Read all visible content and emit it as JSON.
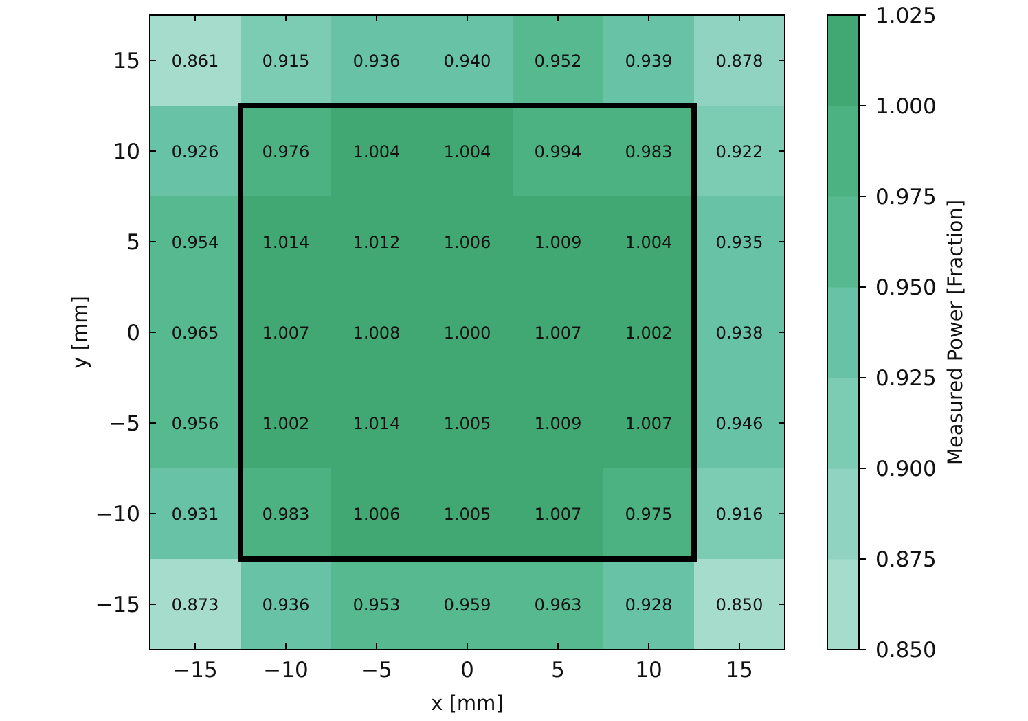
{
  "chart_data": {
    "type": "heatmap",
    "title": "",
    "xlabel": "x [mm]",
    "ylabel": "y [mm]",
    "x": [
      -15,
      -10,
      -5,
      0,
      5,
      10,
      15
    ],
    "y": [
      15,
      10,
      5,
      0,
      -5,
      -10,
      -15
    ],
    "xlim": [
      -17.5,
      17.5
    ],
    "ylim": [
      -17.5,
      17.5
    ],
    "xticks": [
      "−15",
      "−10",
      "−5",
      "0",
      "5",
      "10",
      "15"
    ],
    "yticks": [
      "15",
      "10",
      "5",
      "0",
      "−5",
      "−10",
      "−15"
    ],
    "values": [
      [
        0.861,
        0.915,
        0.936,
        0.94,
        0.952,
        0.939,
        0.878
      ],
      [
        0.926,
        0.976,
        1.004,
        1.004,
        0.994,
        0.983,
        0.922
      ],
      [
        0.954,
        1.014,
        1.012,
        1.006,
        1.009,
        1.004,
        0.935
      ],
      [
        0.965,
        1.007,
        1.008,
        1.0,
        1.007,
        1.002,
        0.938
      ],
      [
        0.956,
        1.002,
        1.014,
        1.005,
        1.009,
        1.007,
        0.946
      ],
      [
        0.931,
        0.983,
        1.006,
        1.005,
        1.007,
        0.975,
        0.916
      ],
      [
        0.873,
        0.936,
        0.953,
        0.959,
        0.963,
        0.928,
        0.85
      ]
    ],
    "value_labels": [
      [
        "0.861",
        "0.915",
        "0.936",
        "0.940",
        "0.952",
        "0.939",
        "0.878"
      ],
      [
        "0.926",
        "0.976",
        "1.004",
        "1.004",
        "0.994",
        "0.983",
        "0.922"
      ],
      [
        "0.954",
        "1.014",
        "1.012",
        "1.006",
        "1.009",
        "1.004",
        "0.935"
      ],
      [
        "0.965",
        "1.007",
        "1.008",
        "1.000",
        "1.007",
        "1.002",
        "0.938"
      ],
      [
        "0.956",
        "1.002",
        "1.014",
        "1.005",
        "1.009",
        "1.007",
        "0.946"
      ],
      [
        "0.931",
        "0.983",
        "1.006",
        "1.005",
        "1.007",
        "0.975",
        "0.916"
      ],
      [
        "0.873",
        "0.936",
        "0.953",
        "0.959",
        "0.963",
        "0.928",
        "0.850"
      ]
    ],
    "outline_box": {
      "x_range": [
        -12.5,
        12.5
      ],
      "y_range": [
        -12.5,
        12.5
      ]
    },
    "colorbar": {
      "label": "Measured Power [Fraction]",
      "range": [
        0.85,
        1.025
      ],
      "ticks": [
        "0.850",
        "0.875",
        "0.900",
        "0.925",
        "0.950",
        "0.975",
        "1.000",
        "1.025"
      ],
      "bins": [
        0.85,
        0.875,
        0.9,
        0.925,
        0.95,
        0.975,
        1.0,
        1.025
      ],
      "colors": [
        "#a5dccc",
        "#90d3c0",
        "#7ccbb3",
        "#67c2a6",
        "#56b98f",
        "#4cb282",
        "#42a873"
      ]
    },
    "grid": false
  }
}
